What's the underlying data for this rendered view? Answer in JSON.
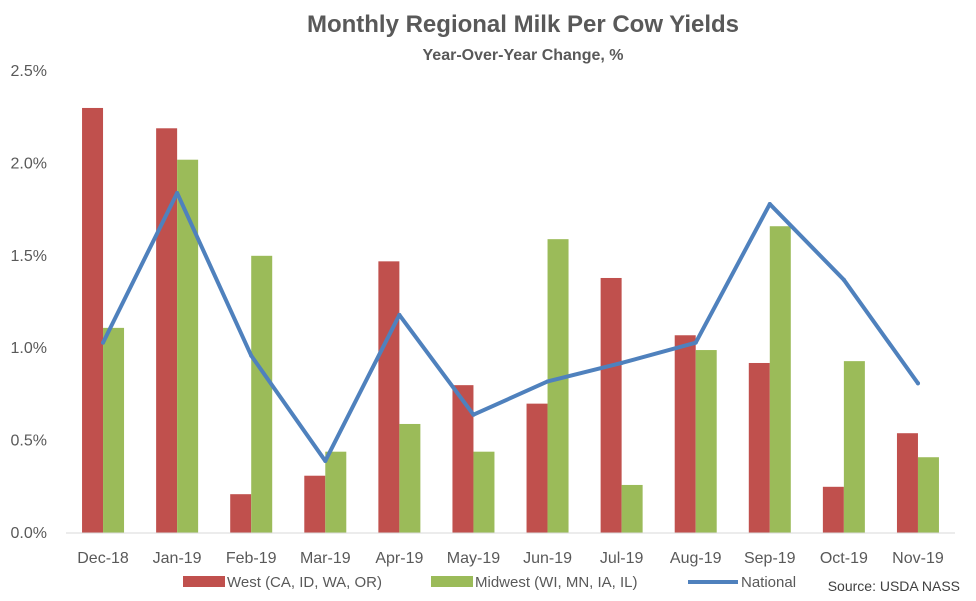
{
  "chart_data": {
    "type": "bar",
    "title": "Monthly Regional Milk Per Cow Yields",
    "subtitle": "Year-Over-Year Change, %",
    "categories": [
      "Dec-18",
      "Jan-19",
      "Feb-19",
      "Mar-19",
      "Apr-19",
      "May-19",
      "Jun-19",
      "Jul-19",
      "Aug-19",
      "Sep-19",
      "Oct-19",
      "Nov-19"
    ],
    "series": [
      {
        "name": "West (CA, ID, WA, OR)",
        "type": "bar",
        "color": "#c0504d",
        "values": [
          2.3,
          2.19,
          0.21,
          0.31,
          1.47,
          0.8,
          0.7,
          1.38,
          1.07,
          0.92,
          0.25,
          0.54
        ]
      },
      {
        "name": "Midwest (WI, MN, IA, IL)",
        "type": "bar",
        "color": "#9bbb59",
        "values": [
          1.11,
          2.02,
          1.5,
          0.44,
          0.59,
          0.44,
          1.59,
          0.26,
          0.99,
          1.66,
          0.93,
          0.41
        ]
      },
      {
        "name": "National",
        "type": "line",
        "color": "#4f81bd",
        "values": [
          1.03,
          1.84,
          0.96,
          0.39,
          1.18,
          0.64,
          0.82,
          0.92,
          1.03,
          1.78,
          1.37,
          0.81
        ]
      }
    ],
    "xlabel": "",
    "ylabel": "",
    "ylim": [
      0,
      2.5
    ],
    "yticks": [
      "0.0%",
      "0.5%",
      "1.0%",
      "1.5%",
      "2.0%",
      "2.5%"
    ],
    "grid": false,
    "legend": "bottom",
    "source": "Source: USDA NASS"
  }
}
